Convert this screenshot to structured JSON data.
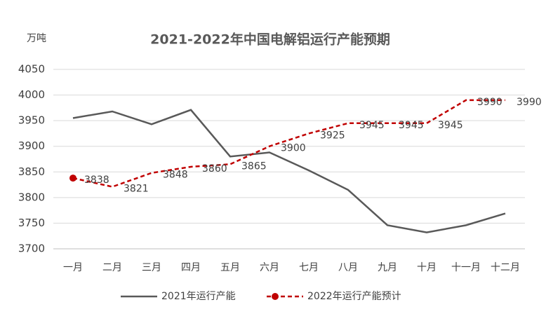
{
  "chart_data": {
    "type": "line",
    "title": "2021-2022年中国电解铝运行产能预期",
    "y_label": "万吨",
    "categories": [
      "一月",
      "二月",
      "三月",
      "四月",
      "五月",
      "六月",
      "七月",
      "八月",
      "九月",
      "十月",
      "十一月",
      "十二月"
    ],
    "series": [
      {
        "name": "2021年运行产能",
        "color": "#595959",
        "dash": false,
        "marker": false,
        "values": [
          3955,
          3968,
          3943,
          3971,
          3880,
          3888,
          3853,
          3815,
          3746,
          3732,
          3746,
          3769
        ]
      },
      {
        "name": "2022年运行产能预计",
        "color": "#c00000",
        "dash": true,
        "marker": true,
        "show_labels": true,
        "values": [
          3838,
          3821,
          3848,
          3860,
          3865,
          3900,
          3925,
          3945,
          3945,
          3945,
          3990,
          3990
        ]
      }
    ],
    "ylim": [
      3700,
      4050
    ],
    "yticks": [
      3700,
      3750,
      3800,
      3850,
      3900,
      3950,
      4000,
      4050
    ],
    "grid": true
  }
}
